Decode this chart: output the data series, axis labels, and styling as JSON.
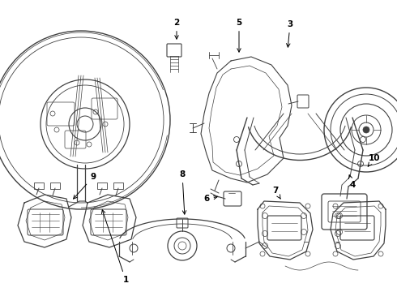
{
  "bg_color": "#ffffff",
  "line_color": "#404040",
  "fig_width": 4.9,
  "fig_height": 3.6,
  "dpi": 100,
  "label_arrows": {
    "1": {
      "lp": [
        0.155,
        0.355
      ],
      "ap": [
        0.13,
        0.44
      ]
    },
    "2": {
      "lp": [
        0.318,
        0.895
      ],
      "ap": [
        0.305,
        0.845
      ]
    },
    "3": {
      "lp": [
        0.635,
        0.905
      ],
      "ap": [
        0.6,
        0.845
      ]
    },
    "4": {
      "lp": [
        0.655,
        0.385
      ],
      "ap": [
        0.645,
        0.435
      ]
    },
    "5": {
      "lp": [
        0.435,
        0.895
      ],
      "ap": [
        0.41,
        0.815
      ]
    },
    "6": {
      "lp": [
        0.385,
        0.52
      ],
      "ap": [
        0.408,
        0.525
      ]
    },
    "7": {
      "lp": [
        0.555,
        0.355
      ],
      "ap": [
        0.545,
        0.395
      ]
    },
    "8": {
      "lp": [
        0.355,
        0.215
      ],
      "ap": [
        0.345,
        0.245
      ]
    },
    "9": {
      "lp": [
        0.185,
        0.645
      ],
      "ap": [
        0.155,
        0.59
      ]
    },
    "10": {
      "lp": [
        0.88,
        0.69
      ],
      "ap": [
        0.845,
        0.645
      ]
    }
  }
}
